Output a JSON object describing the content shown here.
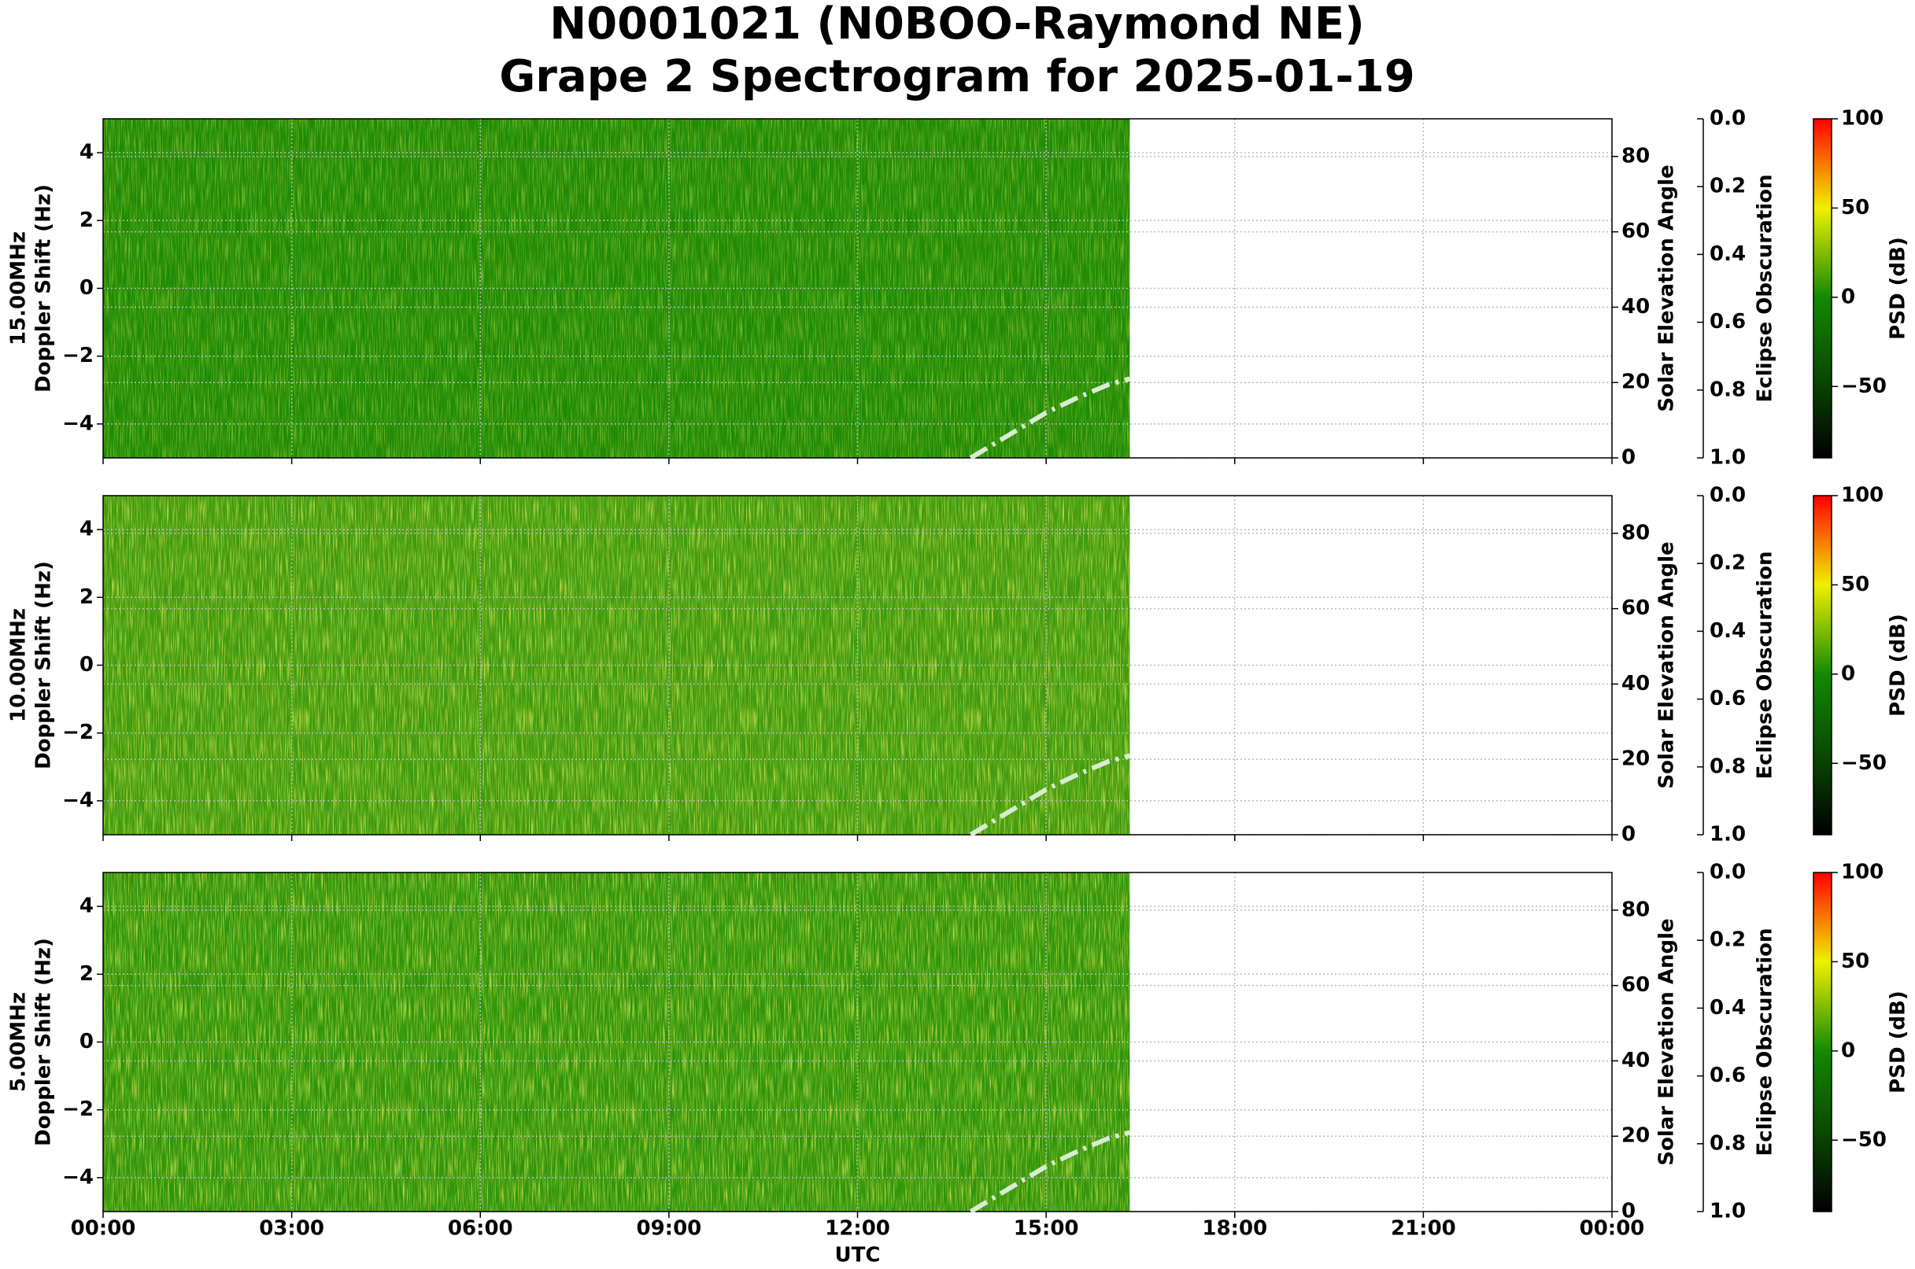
{
  "title": [
    "N0001021 (N0BOO-Raymond NE)",
    "Grape 2 Spectrogram for 2025-01-19"
  ],
  "x_axis": {
    "xlabel": "UTC",
    "xlim": [
      0,
      24
    ],
    "xticks": [
      {
        "value": 0,
        "label": "00:00"
      },
      {
        "value": 3,
        "label": "03:00"
      },
      {
        "value": 6,
        "label": "06:00"
      },
      {
        "value": 9,
        "label": "09:00"
      },
      {
        "value": 12,
        "label": "12:00"
      },
      {
        "value": 15,
        "label": "15:00"
      },
      {
        "value": 18,
        "label": "18:00"
      },
      {
        "value": 21,
        "label": "21:00"
      },
      {
        "value": 24,
        "label": "00:00"
      }
    ]
  },
  "chart_data": [
    {
      "type": "spectrogram",
      "ylabel": [
        "15.00MHz",
        "Doppler Shift (Hz)"
      ],
      "ylim": [
        -5,
        5
      ],
      "yticks": [
        {
          "value": -4,
          "label": "−4"
        },
        {
          "value": -2,
          "label": "−2"
        },
        0,
        2,
        4
      ],
      "y2label": "Solar Elevation Angle",
      "y2lim": [
        0,
        90
      ],
      "y2ticks": [
        0,
        20,
        40,
        60,
        80
      ],
      "y3label": "Eclipse Obscuration",
      "y3lim": [
        0,
        1
      ],
      "y3ticks": [
        {
          "value": 0,
          "label": "0.0"
        },
        {
          "value": 0.2,
          "label": "0.2"
        },
        {
          "value": 0.4,
          "label": "0.4"
        },
        {
          "value": 0.6,
          "label": "0.6"
        },
        {
          "value": 0.8,
          "label": "0.8"
        },
        {
          "value": 1,
          "label": "1.0"
        }
      ],
      "colorbar_label": "PSD (dB)",
      "clim": [
        -90,
        100
      ],
      "cticks": [
        {
          "value": -50,
          "label": "−50"
        },
        0,
        50,
        100
      ],
      "grid": true,
      "series": [
        {
          "axis": "y2",
          "color": "#d8ecd0",
          "x": [
            13.8,
            14.5,
            15,
            15.5,
            16,
            16.33
          ],
          "values": [
            0,
            7,
            12,
            16,
            19.5,
            21
          ]
        }
      ]
    },
    {
      "type": "spectrogram",
      "ylabel": [
        "10.00MHz",
        "Doppler Shift (Hz)"
      ],
      "ylim": [
        -5,
        5
      ],
      "yticks": [
        {
          "value": -4,
          "label": "−4"
        },
        {
          "value": -2,
          "label": "−2"
        },
        0,
        2,
        4
      ],
      "y2label": "Solar Elevation Angle",
      "y2lim": [
        0,
        90
      ],
      "y2ticks": [
        0,
        20,
        40,
        60,
        80
      ],
      "y3label": "Eclipse Obscuration",
      "y3lim": [
        0,
        1
      ],
      "y3ticks": [
        {
          "value": 0,
          "label": "0.0"
        },
        {
          "value": 0.2,
          "label": "0.2"
        },
        {
          "value": 0.4,
          "label": "0.4"
        },
        {
          "value": 0.6,
          "label": "0.6"
        },
        {
          "value": 0.8,
          "label": "0.8"
        },
        {
          "value": 1,
          "label": "1.0"
        }
      ],
      "colorbar_label": "PSD (dB)",
      "clim": [
        -90,
        100
      ],
      "cticks": [
        {
          "value": -50,
          "label": "−50"
        },
        0,
        50,
        100
      ],
      "grid": true,
      "series": [
        {
          "axis": "y2",
          "color": "#d8ecd0",
          "x": [
            13.8,
            14.5,
            15,
            15.5,
            16,
            16.33
          ],
          "values": [
            0,
            7,
            12,
            16,
            19.5,
            21
          ]
        }
      ]
    },
    {
      "type": "spectrogram",
      "ylabel": [
        "5.00MHz",
        "Doppler Shift (Hz)"
      ],
      "ylim": [
        -5,
        5
      ],
      "yticks": [
        {
          "value": -4,
          "label": "−4"
        },
        {
          "value": -2,
          "label": "−2"
        },
        0,
        2,
        4
      ],
      "y2label": "Solar Elevation Angle",
      "y2lim": [
        0,
        90
      ],
      "y2ticks": [
        0,
        20,
        40,
        60,
        80
      ],
      "y3label": "Eclipse Obscuration",
      "y3lim": [
        0,
        1
      ],
      "y3ticks": [
        {
          "value": 0,
          "label": "0.0"
        },
        {
          "value": 0.2,
          "label": "0.2"
        },
        {
          "value": 0.4,
          "label": "0.4"
        },
        {
          "value": 0.6,
          "label": "0.6"
        },
        {
          "value": 0.8,
          "label": "0.8"
        },
        {
          "value": 1,
          "label": "1.0"
        }
      ],
      "colorbar_label": "PSD (dB)",
      "clim": [
        -90,
        100
      ],
      "cticks": [
        {
          "value": -50,
          "label": "−50"
        },
        0,
        50,
        100
      ],
      "grid": true,
      "series": [
        {
          "axis": "y2",
          "color": "#d8ecd0",
          "x": [
            13.8,
            14.5,
            15,
            15.5,
            16,
            16.33
          ],
          "values": [
            0,
            7,
            12,
            16,
            19.5,
            21
          ]
        }
      ]
    }
  ]
}
